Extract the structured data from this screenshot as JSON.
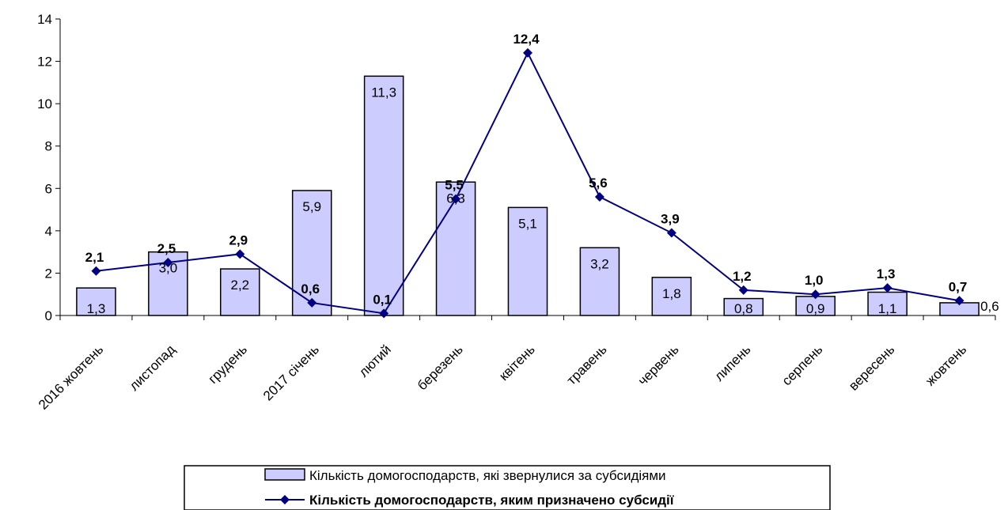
{
  "chart_data": {
    "type": "bar",
    "categories": [
      "2016 жовтень",
      "листопад",
      "грудень",
      "2017 січень",
      "лютий",
      "березень",
      "квітень",
      "травень",
      "червень",
      "липень",
      "серпень",
      "вересень",
      "жовтень"
    ],
    "ylim": [
      0,
      14
    ],
    "yticks": [
      0,
      2,
      4,
      6,
      8,
      10,
      12,
      14
    ],
    "grid": false,
    "legend_position": "bottom",
    "series": [
      {
        "name": "Кількість домогосподарств, які звернулися за субсидіями",
        "type": "bar",
        "color": "#ccccff",
        "values": [
          1.3,
          3.0,
          2.2,
          5.9,
          11.3,
          6.3,
          5.1,
          3.2,
          1.8,
          0.8,
          0.9,
          1.1,
          0.6
        ],
        "labels": [
          "1,3",
          "3,0",
          "2,2",
          "5,9",
          "11,3",
          "6,3",
          "5,1",
          "3,2",
          "1,8",
          "0,8",
          "0,9",
          "1,1",
          "0,6"
        ]
      },
      {
        "name": "Кількість домогосподарств, яким призначено субсидії",
        "type": "line",
        "color": "#000080",
        "marker": "diamond",
        "values": [
          2.1,
          2.5,
          2.9,
          0.6,
          0.1,
          5.5,
          12.4,
          5.6,
          3.9,
          1.2,
          1.0,
          1.3,
          0.7
        ],
        "labels": [
          "2,1",
          "2,5",
          "2,9",
          "0,6",
          "0,1",
          "5,5",
          "12,4",
          "5,6",
          "3,9",
          "1,2",
          "1,0",
          "1,3",
          "0,7"
        ]
      }
    ]
  }
}
